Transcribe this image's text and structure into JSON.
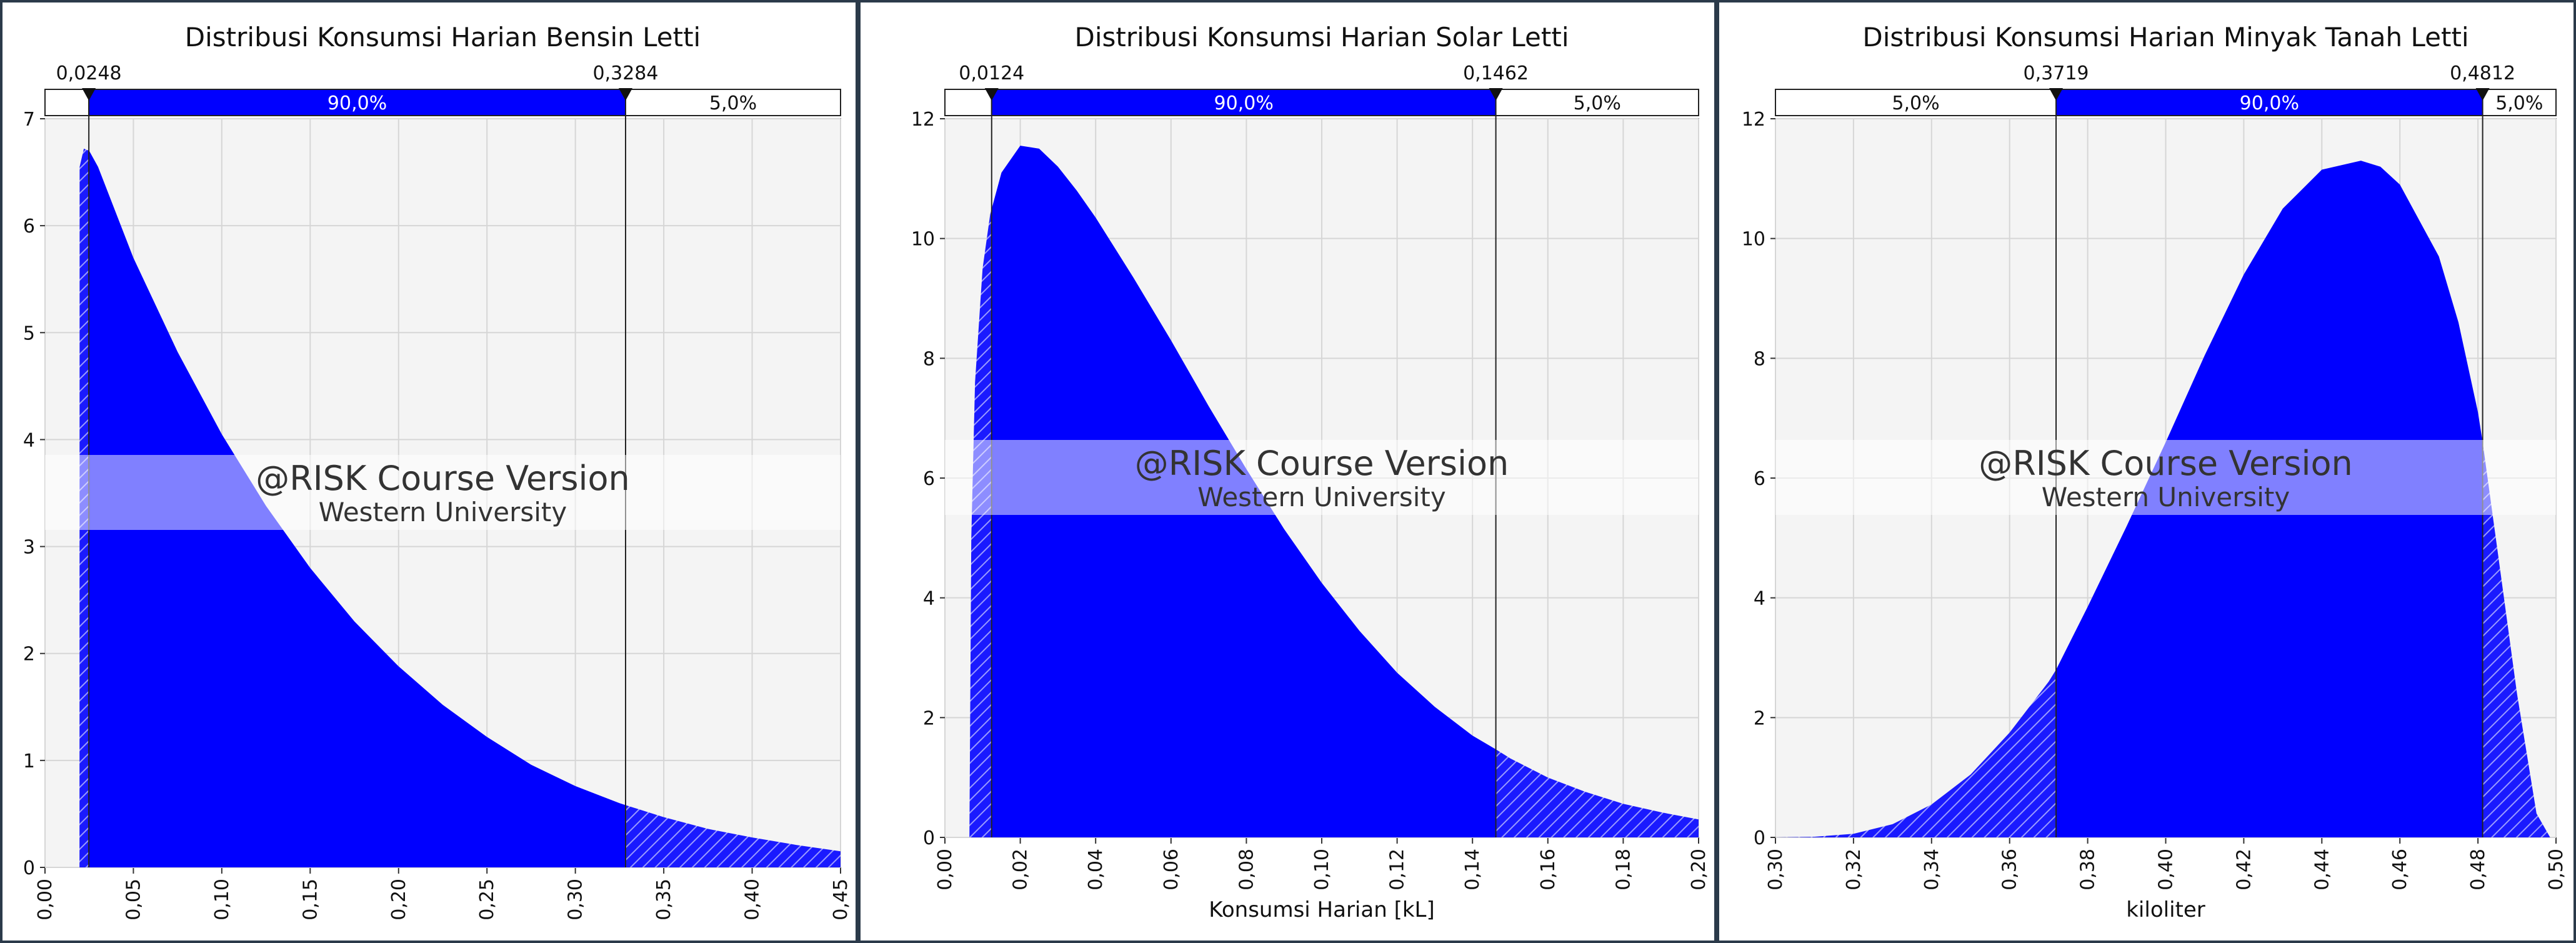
{
  "chart_data": [
    {
      "type": "area",
      "title": "Distribusi Konsumsi Harian Bensin Letti",
      "xlabel": "",
      "ylabel": "",
      "xlim": [
        0.0,
        0.45
      ],
      "ylim": [
        0,
        7
      ],
      "x_ticks": [
        "0,00",
        "0,05",
        "0,10",
        "0,15",
        "0,20",
        "0,25",
        "0,30",
        "0,35",
        "0,40",
        "0,45"
      ],
      "y_ticks": [
        "0",
        "1",
        "2",
        "3",
        "4",
        "5",
        "6",
        "7"
      ],
      "grid": true,
      "color": "#0000ff",
      "x": [
        0.0,
        0.0195,
        0.0196,
        0.022,
        0.025,
        0.03,
        0.05,
        0.075,
        0.1,
        0.125,
        0.15,
        0.175,
        0.2,
        0.225,
        0.25,
        0.275,
        0.3,
        0.325,
        0.35,
        0.375,
        0.4,
        0.425,
        0.45
      ],
      "y": [
        0.0,
        0.0,
        6.55,
        6.72,
        6.7,
        6.55,
        5.7,
        4.82,
        4.05,
        3.38,
        2.8,
        2.3,
        1.88,
        1.52,
        1.22,
        0.96,
        0.76,
        0.6,
        0.47,
        0.36,
        0.28,
        0.21,
        0.15
      ],
      "markers": [
        "0,0248",
        "0,3284"
      ],
      "marker_values": [
        0.0248,
        0.3284
      ],
      "bands": [
        "",
        "90,0%",
        "5,0%"
      ],
      "band_fractions": [
        0.05,
        0.9,
        0.05
      ]
    },
    {
      "type": "area",
      "title": "Distribusi Konsumsi Harian Solar Letti",
      "xlabel": "Konsumsi Harian [kL]",
      "ylabel": "",
      "xlim": [
        0.0,
        0.2
      ],
      "ylim": [
        0,
        12
      ],
      "x_ticks": [
        "0,00",
        "0,02",
        "0,04",
        "0,06",
        "0,08",
        "0,10",
        "0,12",
        "0,14",
        "0,16",
        "0,18",
        "0,20"
      ],
      "y_ticks": [
        "0",
        "2",
        "4",
        "6",
        "8",
        "10",
        "12"
      ],
      "grid": true,
      "color": "#0000ff",
      "x": [
        0.0,
        0.0065,
        0.007,
        0.008,
        0.01,
        0.012,
        0.015,
        0.02,
        0.025,
        0.03,
        0.035,
        0.04,
        0.05,
        0.06,
        0.07,
        0.08,
        0.09,
        0.1,
        0.11,
        0.12,
        0.13,
        0.14,
        0.1462,
        0.15,
        0.16,
        0.17,
        0.18,
        0.19,
        0.2
      ],
      "y": [
        0.0,
        0.0,
        5.0,
        7.6,
        9.5,
        10.4,
        11.1,
        11.55,
        11.5,
        11.2,
        10.8,
        10.35,
        9.35,
        8.3,
        7.2,
        6.15,
        5.15,
        4.25,
        3.45,
        2.75,
        2.18,
        1.7,
        1.47,
        1.32,
        1.0,
        0.76,
        0.56,
        0.42,
        0.3
      ],
      "markers": [
        "0,0124",
        "0,1462"
      ],
      "marker_values": [
        0.0124,
        0.1462
      ],
      "bands": [
        "",
        "90,0%",
        "5,0%"
      ],
      "band_fractions": [
        0.05,
        0.9,
        0.05
      ]
    },
    {
      "type": "area",
      "title": "Distribusi Konsumsi Harian Minyak Tanah Letti",
      "xlabel": "kiloliter",
      "ylabel": "",
      "xlim": [
        0.3,
        0.5
      ],
      "ylim": [
        0,
        12
      ],
      "x_ticks": [
        "0,30",
        "0,32",
        "0,34",
        "0,36",
        "0,38",
        "0,40",
        "0,42",
        "0,44",
        "0,46",
        "0,48",
        "0,50"
      ],
      "y_ticks": [
        "0",
        "2",
        "4",
        "6",
        "8",
        "10",
        "12"
      ],
      "grid": true,
      "color": "#0000ff",
      "x": [
        0.3,
        0.31,
        0.32,
        0.33,
        0.34,
        0.35,
        0.36,
        0.37,
        0.3719,
        0.38,
        0.39,
        0.4,
        0.41,
        0.42,
        0.43,
        0.44,
        0.45,
        0.455,
        0.46,
        0.47,
        0.475,
        0.48,
        0.4812,
        0.485,
        0.49,
        0.495,
        0.4985,
        0.5
      ],
      "y": [
        0.0,
        0.01,
        0.06,
        0.22,
        0.55,
        1.05,
        1.75,
        2.6,
        2.8,
        3.85,
        5.2,
        6.6,
        8.05,
        9.4,
        10.5,
        11.15,
        11.3,
        11.2,
        10.9,
        9.7,
        8.6,
        7.1,
        6.6,
        4.8,
        2.4,
        0.4,
        0.0,
        0.0
      ],
      "markers": [
        "0,3719",
        "0,4812"
      ],
      "marker_values": [
        0.3719,
        0.4812
      ],
      "bands": [
        "5,0%",
        "90,0%",
        "5,0%"
      ],
      "band_fractions": [
        0.05,
        0.9,
        0.05
      ]
    }
  ],
  "watermark": {
    "line1": "@RISK Course Version",
    "line2": "Western University"
  }
}
